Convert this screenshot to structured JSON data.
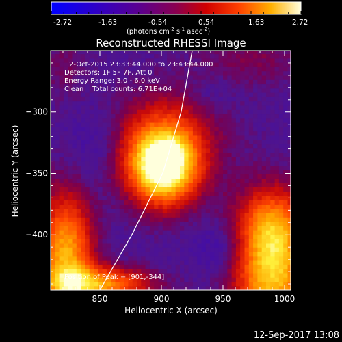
{
  "colorbar": {
    "ticks": [
      "-2.72",
      "-1.63",
      "-0.54",
      "0.54",
      "1.63",
      "2.72"
    ],
    "units_main": "(photons cm",
    "units_exp1": "-2",
    "units_mid": " s",
    "units_exp2": "-1",
    "units_tail": " asec",
    "units_exp3": "-2",
    "units_close": ")"
  },
  "chart_data": {
    "type": "heatmap",
    "title": "Reconstructed RHESSI Image",
    "xlabel": "Heliocentric X (arcsec)",
    "ylabel": "Heliocentric Y (arcsec)",
    "xlim": [
      810,
      1005
    ],
    "ylim": [
      -445,
      -250
    ],
    "xticks": [
      850,
      900,
      950,
      1000
    ],
    "yticks": [
      -300,
      -350,
      -400
    ],
    "value_range": [
      -2.72,
      2.72
    ],
    "peak": [
      901,
      -344
    ],
    "annotations": [
      "2-Oct-2015 23:33:44.000 to 23:43:44.000",
      "Detectors: 1F 5F 7F, Att 0",
      "Energy Range: 3.0 - 6.0 keV",
      "Clean    Total counts: 6.71E+04"
    ],
    "peak_label": "Position of Peak = [901,-344]",
    "limb_curve": [
      [
        850,
        -445
      ],
      [
        876,
        -400
      ],
      [
        901,
        -350
      ],
      [
        916,
        -300
      ],
      [
        925,
        -250
      ]
    ],
    "grid": false
  },
  "footer": {
    "date": "12-Sep-2017 13:08"
  }
}
